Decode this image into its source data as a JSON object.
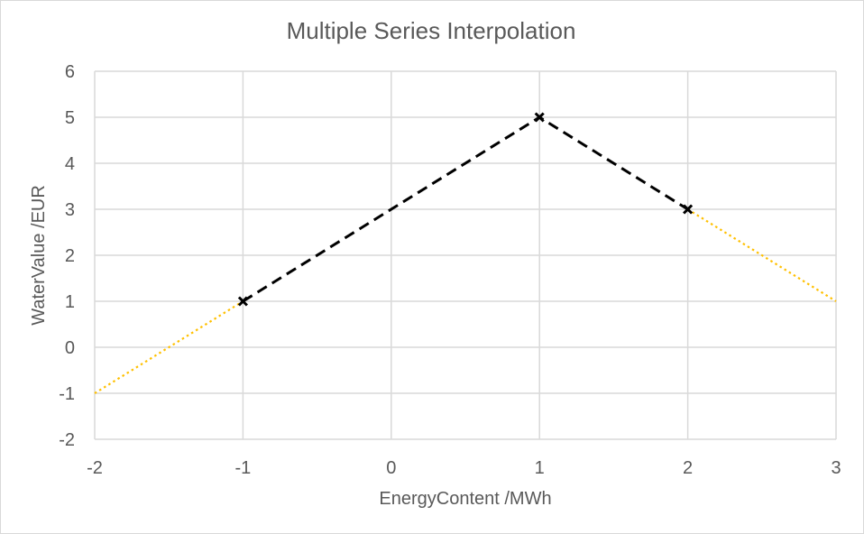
{
  "chart_data": {
    "type": "line",
    "title": "Multiple Series Interpolation",
    "xlabel": "EnergyContent /MWh",
    "ylabel": "WaterValue /EUR",
    "xlim": [
      -2,
      3
    ],
    "ylim": [
      -2,
      6
    ],
    "x_ticks": [
      -2,
      -1,
      0,
      1,
      2,
      3
    ],
    "y_ticks": [
      -2,
      -1,
      0,
      1,
      2,
      3,
      4,
      5,
      6
    ],
    "grid": true,
    "legend": "none",
    "series": [
      {
        "style": "dotted",
        "color": "#ffc000",
        "marker": "none",
        "x": [
          -2,
          -1
        ],
        "y": [
          -1,
          1
        ]
      },
      {
        "style": "dashed",
        "color": "#000000",
        "marker": "x",
        "x": [
          -1,
          1,
          2
        ],
        "y": [
          1,
          5,
          3
        ]
      },
      {
        "style": "dotted",
        "color": "#ffc000",
        "marker": "none",
        "x": [
          2,
          3
        ],
        "y": [
          3,
          1
        ]
      }
    ]
  }
}
